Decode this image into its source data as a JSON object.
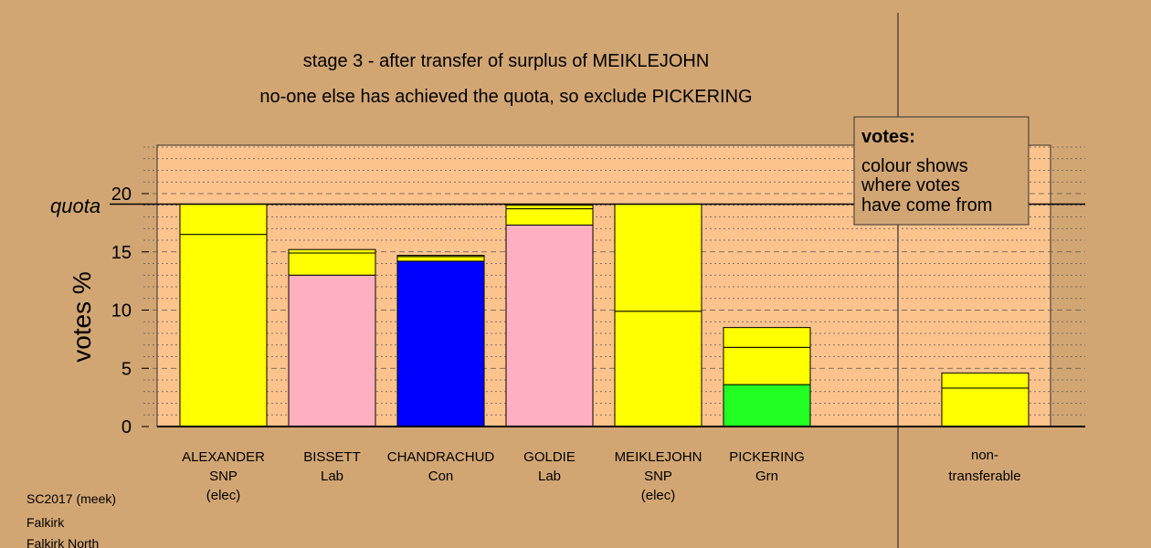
{
  "chart_data": {
    "type": "bar",
    "stacked": true,
    "title": "stage 3 - after transfer of surplus of MEIKLEJOHN",
    "subtitle": "no-one else has achieved the quota, so exclude PICKERING",
    "ylabel": "votes %",
    "ylim": [
      0,
      24
    ],
    "yticks": [
      0,
      5,
      10,
      15,
      20
    ],
    "quota": 19.1,
    "quota_label": "quota",
    "grid": "dotted",
    "candidates": [
      {
        "name": "ALEXANDER",
        "party": "SNP",
        "status": "(elec)",
        "segments": [
          {
            "value": 16.5,
            "color": "#ffff00"
          },
          {
            "value": 2.6,
            "color": "#ffff00"
          }
        ]
      },
      {
        "name": "BISSETT",
        "party": "Lab",
        "status": "",
        "segments": [
          {
            "value": 13.0,
            "color": "#ffb0c0"
          },
          {
            "value": 1.9,
            "color": "#ffff00"
          },
          {
            "value": 0.3,
            "color": "#ffff00"
          }
        ]
      },
      {
        "name": "CHANDRACHUD",
        "party": "Con",
        "status": "",
        "segments": [
          {
            "value": 14.2,
            "color": "#0000ff"
          },
          {
            "value": 0.4,
            "color": "#ffff00"
          },
          {
            "value": 0.1,
            "color": "#ffff00"
          }
        ]
      },
      {
        "name": "GOLDIE",
        "party": "Lab",
        "status": "",
        "segments": [
          {
            "value": 17.3,
            "color": "#ffb0c0"
          },
          {
            "value": 1.4,
            "color": "#ffff00"
          },
          {
            "value": 0.3,
            "color": "#ffff00"
          }
        ]
      },
      {
        "name": "MEIKLEJOHN",
        "party": "SNP",
        "status": "(elec)",
        "segments": [
          {
            "value": 9.9,
            "color": "#ffff00"
          },
          {
            "value": 9.2,
            "color": "#ffff00"
          }
        ]
      },
      {
        "name": "PICKERING",
        "party": "Grn",
        "status": "",
        "segments": [
          {
            "value": 3.6,
            "color": "#22ff22"
          },
          {
            "value": 3.2,
            "color": "#ffff00"
          },
          {
            "value": 1.7,
            "color": "#ffff00"
          }
        ]
      }
    ],
    "nontransferable": {
      "label1": "non-",
      "label2": "transferable",
      "segments": [
        {
          "value": 3.3,
          "color": "#ffff00"
        },
        {
          "value": 1.3,
          "color": "#ffff00"
        }
      ]
    }
  },
  "legend": {
    "title": "votes:",
    "lines": [
      "colour shows",
      "where votes",
      "have come from"
    ]
  },
  "footer": [
    "SC2017 (meek)",
    "Falkirk",
    "Falkirk North"
  ],
  "colors": {
    "background": "#d2a673",
    "plot_bg": "#fdc38d",
    "text": "#000000"
  }
}
